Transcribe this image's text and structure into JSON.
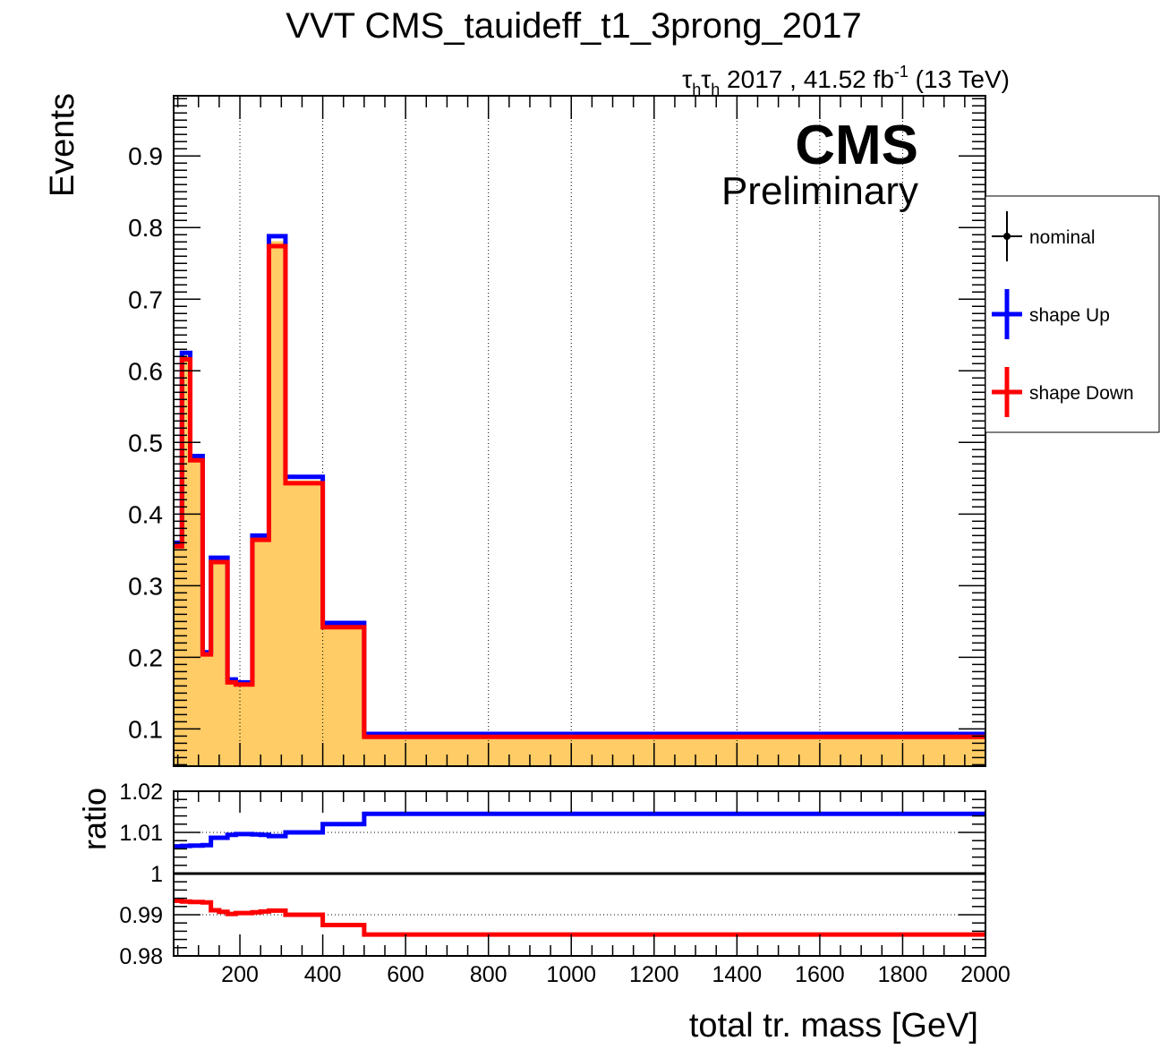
{
  "chart_data": {
    "type": "line",
    "title": "VVT CMS_tauideff_t1_3prong_2017",
    "lumi_label": {
      "channel_prefix": "τ",
      "channel_sub": "h",
      "text": " 2017 , 41.52 fb",
      "sup": "-1",
      "suffix": " (13 TeV)"
    },
    "cms_label": "CMS",
    "cms_sublabel": "Preliminary",
    "xlabel": "total tr. mass [GeV]",
    "ylabel": "Events",
    "ratio_ylabel": "ratio",
    "xlim": [
      40,
      2000
    ],
    "ylim": [
      0.048,
      0.984
    ],
    "ratio_ylim": [
      0.98,
      1.02
    ],
    "x_ticks": [
      "200",
      "400",
      "600",
      "800",
      "1000",
      "1200",
      "1400",
      "1600",
      "1800",
      "2000"
    ],
    "y_ticks": [
      "0.1",
      "0.2",
      "0.3",
      "0.4",
      "0.5",
      "0.6",
      "0.7",
      "0.8",
      "0.9"
    ],
    "ratio_y_ticks": [
      "0.98",
      "0.99",
      "1",
      "1.01",
      "1.02"
    ],
    "bin_edges": [
      40,
      60,
      80,
      110,
      130,
      150,
      170,
      190,
      230,
      250,
      270,
      310,
      350,
      400,
      500,
      2000
    ],
    "series": [
      {
        "name": "nominal",
        "color": "#000000",
        "values": [
          0.357,
          0.621,
          0.478,
          0.206,
          0.336,
          0.336,
          0.167,
          0.164,
          0.367,
          0.367,
          0.781,
          0.447,
          0.447,
          0.245,
          0.091
        ]
      },
      {
        "name": "shape Up",
        "color": "#0000ff",
        "values": [
          0.36,
          0.625,
          0.481,
          0.207,
          0.339,
          0.339,
          0.169,
          0.165,
          0.37,
          0.37,
          0.788,
          0.452,
          0.452,
          0.248,
          0.093
        ]
      },
      {
        "name": "shape Down",
        "color": "#ff0000",
        "values": [
          0.355,
          0.616,
          0.475,
          0.204,
          0.333,
          0.333,
          0.165,
          0.162,
          0.364,
          0.364,
          0.774,
          0.443,
          0.443,
          0.242,
          0.089
        ]
      }
    ],
    "ratio_series": [
      {
        "name": "shape Up / nominal",
        "color": "#0000ff",
        "values": [
          1.0066,
          1.0067,
          1.0068,
          1.0069,
          1.0087,
          1.0087,
          1.0094,
          1.0096,
          1.0095,
          1.0094,
          1.0091,
          1.01,
          1.01,
          1.012,
          1.0145
        ]
      },
      {
        "name": "shape Down / nominal",
        "color": "#ff0000",
        "values": [
          0.9934,
          0.9932,
          0.9931,
          0.993,
          0.9911,
          0.9907,
          0.9902,
          0.9904,
          0.9906,
          0.9908,
          0.991,
          0.99,
          0.99,
          0.9875,
          0.9852
        ]
      }
    ],
    "fill_color": "#ffcc66",
    "grid_x": true,
    "legend_placement": "right"
  }
}
